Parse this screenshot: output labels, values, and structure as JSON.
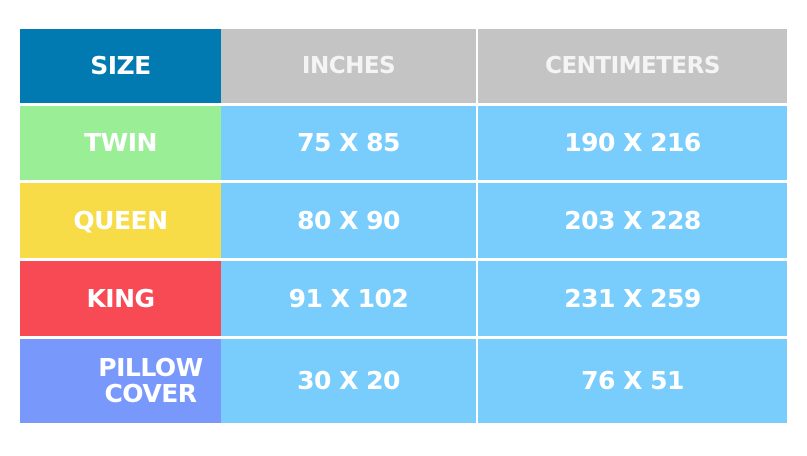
{
  "chart_data": {
    "type": "table",
    "columns": [
      "SIZE",
      "INCHES",
      "CENTIMETERS"
    ],
    "rows": [
      {
        "size": "TWIN",
        "inches": "75 X 85",
        "cm": "190 X 216",
        "color": "#9AEE96"
      },
      {
        "size": "QUEEN",
        "inches": "80 X 90",
        "cm": "203 X 228",
        "color": "#F7DB47"
      },
      {
        "size": "KING",
        "inches": "91 X 102",
        "cm": "231 X 259",
        "color": "#F84A55"
      },
      {
        "size": "PILLOW COVER",
        "inches": "30 X 20",
        "cm": "76 X 51",
        "color": "#7898FC"
      }
    ],
    "colors": {
      "size_header": "#007AB0",
      "header": "#C4C4C4",
      "value_cell": "#78CDFD"
    }
  }
}
